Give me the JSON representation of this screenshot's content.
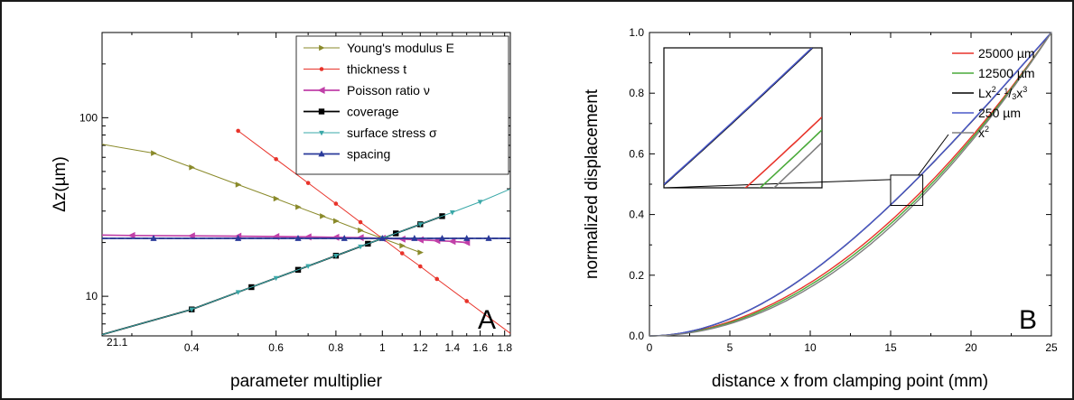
{
  "chart_data": [
    {
      "panel": "A",
      "type": "line",
      "xlabel": "parameter multiplier",
      "ylabel": "Δz(µm)",
      "xscale": "log",
      "yscale": "log",
      "xlim": [
        0.26,
        1.85
      ],
      "ylim": [
        6,
        300
      ],
      "x_ticks": [
        0.4,
        0.6,
        0.8,
        1,
        1.2,
        1.4,
        1.6,
        1.8
      ],
      "x_tick_labels": [
        "0.4",
        "0.6",
        "0.8",
        "1",
        "1.2",
        "1.4",
        "1.6",
        "1.8"
      ],
      "y_ticks": [
        10,
        100
      ],
      "y_tick_labels": [
        "10",
        "100"
      ],
      "legend_position": "top-right",
      "reference_line": {
        "value": 21.1,
        "label": "21.1",
        "style": "dashed"
      },
      "series": [
        {
          "name": "Young's modulus E",
          "color": "#8a8a2a",
          "marker": "triangle-right",
          "x": [
            0.26,
            0.333,
            0.4,
            0.5,
            0.6,
            0.667,
            0.75,
            0.8,
            0.9,
            1.0,
            1.1,
            1.2
          ],
          "y": [
            71,
            63.3,
            52.7,
            42.2,
            35.2,
            31.6,
            28.1,
            26.4,
            23.4,
            21.1,
            19.2,
            17.6
          ]
        },
        {
          "name": "thickness t",
          "color": "#e8332a",
          "marker": "circle",
          "x": [
            0.5,
            0.6,
            0.7,
            0.8,
            0.9,
            1.0,
            1.1,
            1.2,
            1.3,
            1.5,
            1.85
          ],
          "y": [
            84.4,
            58.6,
            43.1,
            33.0,
            26.0,
            21.1,
            17.4,
            14.7,
            12.5,
            9.4,
            6.2
          ]
        },
        {
          "name": "Poisson ratio ν",
          "color": "#c040a8",
          "marker": "triangle-left",
          "x": [
            0.26,
            0.3,
            0.4,
            0.5,
            0.6,
            0.7,
            0.8,
            0.9,
            1.0,
            1.1,
            1.2,
            1.3,
            1.4,
            1.5
          ],
          "y": [
            22.0,
            21.9,
            21.8,
            21.7,
            21.6,
            21.5,
            21.4,
            21.3,
            21.1,
            20.9,
            20.7,
            20.5,
            20.3,
            20.0
          ]
        },
        {
          "name": "coverage",
          "color": "#000000",
          "marker": "square",
          "x": [
            0.26,
            0.4,
            0.533,
            0.667,
            0.8,
            0.933,
            1.067,
            1.2,
            1.333
          ],
          "y": [
            6.1,
            8.44,
            11.25,
            14.07,
            16.88,
            19.69,
            22.5,
            25.3,
            28.1
          ]
        },
        {
          "name": "surface stress σ",
          "color": "#3aa8a8",
          "marker": "triangle-down",
          "x": [
            0.26,
            0.4,
            0.5,
            0.6,
            0.7,
            0.8,
            0.9,
            1.0,
            1.2,
            1.4,
            1.6,
            1.85
          ],
          "y": [
            6.1,
            8.44,
            10.55,
            12.66,
            14.77,
            16.88,
            18.99,
            21.1,
            25.3,
            29.5,
            33.8,
            39.9
          ]
        },
        {
          "name": "spacing",
          "color": "#2a3a9a",
          "marker": "triangle-up",
          "x": [
            0.26,
            0.333,
            0.5,
            0.667,
            0.833,
            1.0,
            1.167,
            1.333,
            1.5,
            1.667,
            1.85
          ],
          "y": [
            21.1,
            21.1,
            21.1,
            21.1,
            21.1,
            21.1,
            21.1,
            21.1,
            21.1,
            21.1,
            21.1
          ]
        }
      ]
    },
    {
      "panel": "B",
      "type": "line",
      "xlabel": "distance x from clamping point (mm)",
      "ylabel": "normalized displacement",
      "xlim": [
        0,
        25
      ],
      "ylim": [
        0,
        1
      ],
      "x_ticks": [
        0,
        5,
        10,
        15,
        20,
        25
      ],
      "x_tick_labels": [
        "0",
        "5",
        "10",
        "15",
        "20",
        "25"
      ],
      "y_ticks": [
        0,
        0.2,
        0.4,
        0.6,
        0.8,
        1.0
      ],
      "y_tick_labels": [
        "0.0",
        "0.2",
        "0.4",
        "0.6",
        "0.8",
        "1.0"
      ],
      "legend_position": "top-center",
      "inset": {
        "type": "zoom",
        "zoom_region_x": [
          15,
          17
        ],
        "zoom_region_y": [
          0.43,
          0.53
        ]
      },
      "series": [
        {
          "name": "25000 µm",
          "color": "#e8332a",
          "function": "x^1.90",
          "x_range": [
            0,
            25
          ]
        },
        {
          "name": "12500 µm",
          "color": "#4aaa3a",
          "function": "x^1.95",
          "x_range": [
            0,
            25
          ]
        },
        {
          "name": "Lx² - 1/3x³",
          "name_parts": [
            "Lx",
            "2",
            "- ",
            "1",
            "/",
            "3",
            "x",
            "3"
          ],
          "color": "#000000",
          "function": "(3x^2 - x^3)/2",
          "x_range": [
            0,
            25
          ]
        },
        {
          "name": "250 µm",
          "color": "#4a58c8",
          "function": "(3x^2 - x^3)/2 + 0.0008",
          "x_range": [
            0,
            25
          ]
        },
        {
          "name": "x²",
          "name_parts": [
            "x",
            "2"
          ],
          "color": "#808080",
          "function": "x^2",
          "x_range": [
            0,
            25
          ]
        }
      ]
    }
  ],
  "panel_letters": {
    "a": "A",
    "b": "B"
  }
}
